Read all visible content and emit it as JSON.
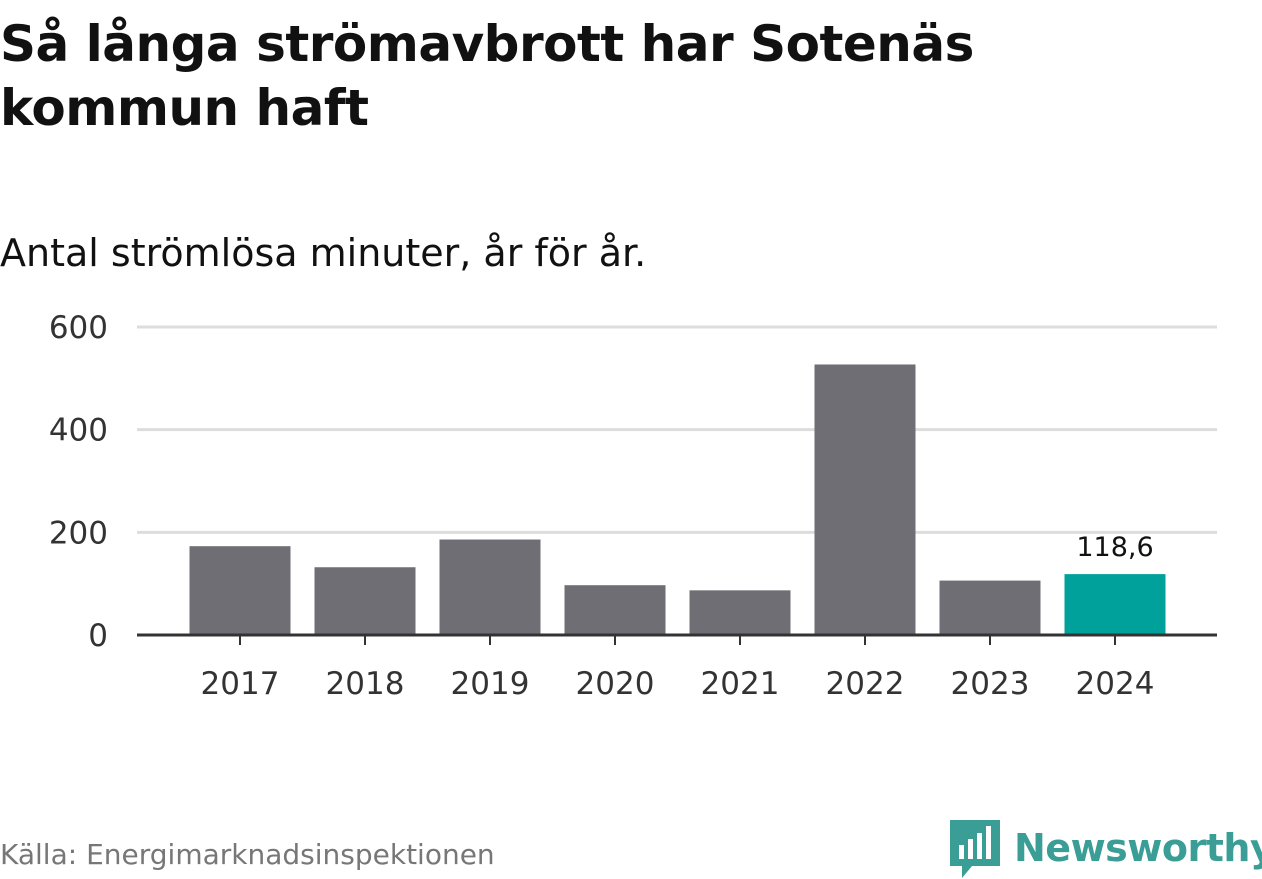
{
  "title": "Så långa strömavbrott har Sotenäs kommun haft",
  "subtitle": "Antal strömlösa minuter, år för år.",
  "source": "Källa: Energimarknadsinspektionen",
  "brand": {
    "name": "Newsworthy",
    "icon": "newsworthy-logo-icon",
    "color": "#3a9d96"
  },
  "colors": {
    "bar": "#6f6e74",
    "highlight": "#00a19a",
    "grid": "#dddddd",
    "axis": "#333333",
    "tick_text": "#333333"
  },
  "chart_data": {
    "type": "bar",
    "title": "Så långa strömavbrott har Sotenäs kommun haft",
    "subtitle": "Antal strömlösa minuter, år för år.",
    "xlabel": "",
    "ylabel": "",
    "categories": [
      "2017",
      "2018",
      "2019",
      "2020",
      "2021",
      "2022",
      "2023",
      "2024"
    ],
    "values": [
      173,
      132,
      186,
      97,
      87,
      527,
      106,
      118.6
    ],
    "highlight_index": 7,
    "data_labels": [
      {
        "index": 7,
        "text": "118,6"
      }
    ],
    "ylim": [
      0,
      600
    ],
    "yticks": [
      0,
      200,
      400,
      600
    ],
    "ytick_labels": [
      "0",
      "200",
      "400",
      "600"
    ],
    "grid": true,
    "legend": "none"
  }
}
